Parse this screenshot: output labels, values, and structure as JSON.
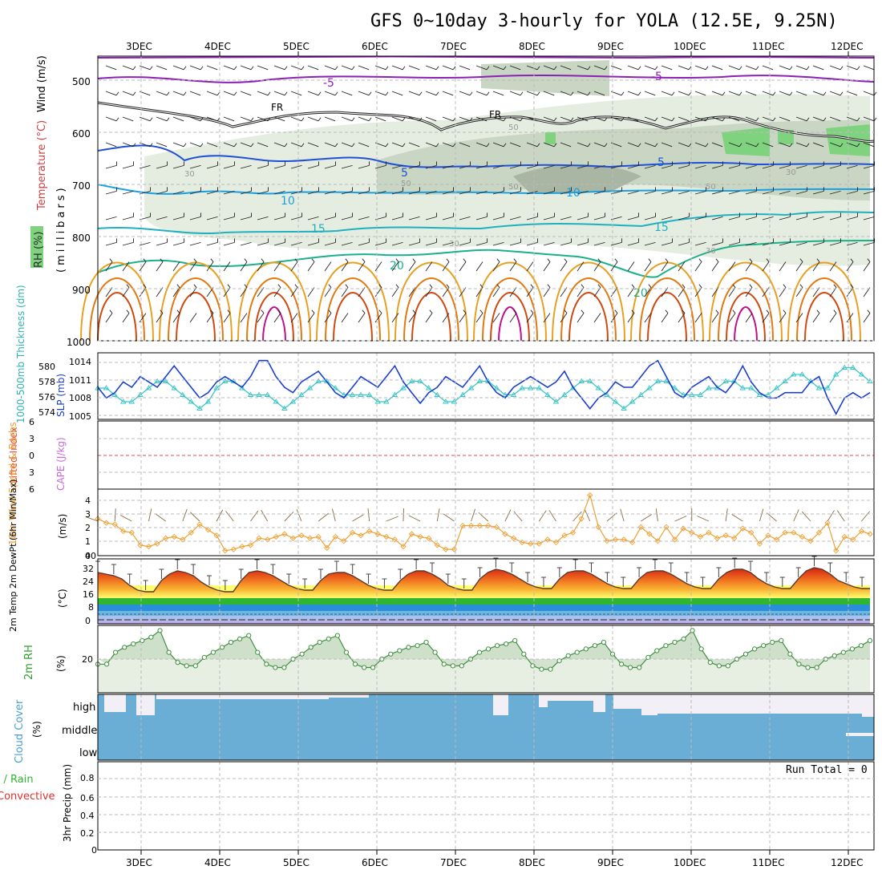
{
  "title": "GFS 0~10day 3-hourly for YOLA (12.5E, 9.25N)",
  "date_labels": [
    "3DEC",
    "4DEC",
    "5DEC",
    "6DEC",
    "7DEC",
    "8DEC",
    "9DEC",
    "10DEC",
    "11DEC",
    "12DEC"
  ],
  "colors": {
    "grid": "#bbbbbb",
    "slp": "#1a3fd0",
    "thickness": "#3bc6c6",
    "lifted": "#e04a4a",
    "cape": "#c86ad8",
    "wind10": "#f0a030",
    "barbs": "#8a6a40",
    "rh2m": "#3f8f3f",
    "rh_fill": "#c8dcc4",
    "cloud": "#6aaed6",
    "cloud_clear": "#f3eff6",
    "precip_total": "#3bbf3b",
    "precip_conv": "#e03030"
  },
  "upper_panel": {
    "ylabel_wind": "Wind (m/s)",
    "ylabel_temp": "Temperature (°C)",
    "ylabel_rh": "RH (%)",
    "ylabel_pressure": "(millibars)",
    "pressure_ticks": [
      "500",
      "600",
      "700",
      "800",
      "900",
      "1000"
    ],
    "isotherm_labels": [
      "-5",
      "-5",
      "FR",
      "FR",
      "5",
      "5",
      "10",
      "10",
      "15",
      "15",
      "20",
      "20"
    ],
    "rh_labels": [
      "30",
      "30",
      "30",
      "30",
      "50",
      "50",
      "50",
      "50"
    ]
  },
  "slp_panel": {
    "ylabel_thickness": "1000-500mb Thickness (dm)",
    "ylabel_slp": "SLP (mb)",
    "thickness_ticks": [
      "580",
      "578",
      "576",
      "574"
    ],
    "slp_ticks": [
      "1014",
      "1011",
      "1008",
      "1005"
    ]
  },
  "stability_panel": {
    "ylabel_li": "Lifted Index",
    "ylabel_cape": "CAPE (J/kg)",
    "ticks": [
      "6",
      "3",
      "0",
      "3",
      "6"
    ]
  },
  "wind_panel": {
    "ylabel": "10m Wind Speed & Barbs",
    "unit": "(m/s)",
    "ticks": [
      "4",
      "3",
      "2",
      "1",
      "0"
    ]
  },
  "temp_panel": {
    "ylabel": "2m Temp 2m DewPt (6hr Min/Max)",
    "unit": "(°C)",
    "ticks": [
      "40",
      "32",
      "24",
      "16",
      "8",
      "0"
    ]
  },
  "rh_panel": {
    "ylabel": "2m RH",
    "unit": "(%)",
    "ticks": [
      "20"
    ]
  },
  "cloud_panel": {
    "ylabel": "Cloud Cover",
    "unit": "(%)",
    "layers": [
      "high",
      "middle",
      "low"
    ]
  },
  "precip_panel": {
    "ylabel_total": "Total / Rain",
    "ylabel_conv": "Convective",
    "ylabel": "3hr Precip (mm)",
    "ticks": [
      "0.8",
      "0.6",
      "0.4",
      "0.2",
      "0"
    ],
    "run_total": "Run Total = 0"
  },
  "chart_data": [
    {
      "type": "line",
      "title": "SLP (mb)",
      "x_unit": "3-hourly steps from 2DEC 12Z",
      "ylim": [
        1004,
        1016
      ],
      "values": [
        1010,
        1008,
        1009,
        1011,
        1010,
        1012,
        1011,
        1010,
        1012,
        1014,
        1012,
        1010,
        1008,
        1009,
        1011,
        1012,
        1011,
        1010,
        1012,
        1015,
        1015,
        1012,
        1010,
        1009,
        1011,
        1012,
        1013,
        1011,
        1009,
        1008,
        1010,
        1012,
        1011,
        1010,
        1012,
        1014,
        1011,
        1009,
        1007,
        1009,
        1010,
        1012,
        1011,
        1010,
        1012,
        1014,
        1011,
        1009,
        1008,
        1010,
        1011,
        1012,
        1011,
        1010,
        1011,
        1013,
        1010,
        1008,
        1006,
        1008,
        1009,
        1011,
        1010,
        1010,
        1012,
        1014,
        1015,
        1012,
        1009,
        1008,
        1010,
        1011,
        1012,
        1010,
        1009,
        1011,
        1014,
        1011,
        1009,
        1008,
        1008,
        1009,
        1009,
        1009,
        1011,
        1012,
        1008,
        1005,
        1008,
        1009,
        1008,
        1009
      ]
    },
    {
      "type": "line",
      "title": "1000-500mb Thickness (dm)",
      "ylim": [
        573,
        581
      ],
      "values": [
        577,
        577,
        576,
        575,
        575,
        576,
        577,
        578,
        578,
        577,
        576,
        575,
        574,
        575,
        577,
        578,
        578,
        577,
        576,
        576,
        576,
        575,
        574,
        575,
        576,
        577,
        578,
        578,
        577,
        576,
        576,
        576,
        576,
        575,
        575,
        576,
        577,
        578,
        578,
        577,
        576,
        575,
        575,
        576,
        577,
        578,
        578,
        577,
        576,
        576,
        577,
        577,
        577,
        576,
        575,
        576,
        577,
        578,
        578,
        577,
        576,
        575,
        574,
        575,
        576,
        577,
        578,
        578,
        577,
        576,
        576,
        576,
        577,
        577,
        578,
        578,
        577,
        577,
        576,
        576,
        577,
        578,
        579,
        579,
        578,
        577,
        577,
        579,
        580,
        580,
        579,
        578
      ]
    },
    {
      "type": "line",
      "title": "10m Wind Speed (m/s)",
      "ylim": [
        0,
        4.5
      ],
      "values": [
        2.6,
        2.3,
        2.2,
        1.7,
        1.6,
        0.7,
        0.6,
        0.8,
        1.2,
        1.3,
        1.1,
        1.6,
        2.2,
        1.8,
        1.4,
        0.3,
        0.4,
        0.6,
        0.7,
        1.2,
        1.1,
        1.3,
        1.5,
        1.2,
        1.4,
        1.2,
        1.3,
        0.5,
        1.3,
        1.0,
        1.6,
        1.4,
        1.7,
        1.5,
        1.3,
        1.1,
        0.6,
        1.5,
        1.3,
        1.2,
        0.7,
        0.4,
        0.4,
        2.1,
        2.1,
        2.1,
        2.1,
        2.0,
        1.5,
        1.2,
        0.9,
        0.8,
        0.8,
        1.1,
        0.9,
        1.4,
        1.6,
        2.6,
        4.3,
        2.0,
        1.0,
        1.1,
        1.1,
        0.9,
        2.0,
        1.5,
        1.0,
        2.0,
        1.1,
        1.9,
        1.6,
        1.3,
        1.6,
        1.2,
        1.4,
        1.2,
        1.9,
        1.6,
        0.8,
        1.4,
        1.1,
        1.6,
        1.6,
        1.3,
        1.0,
        1.6,
        2.3,
        0.3,
        1.3,
        1.1,
        1.7,
        1.5
      ]
    },
    {
      "type": "area",
      "title": "2m Temp (°C)",
      "ylim": [
        0,
        40
      ],
      "values": [
        32,
        31,
        30,
        28,
        24,
        21,
        20,
        20,
        27,
        31,
        33,
        32,
        30,
        26,
        23,
        21,
        20,
        20,
        27,
        32,
        33,
        32,
        30,
        27,
        24,
        22,
        21,
        21,
        27,
        31,
        32,
        32,
        30,
        27,
        24,
        22,
        21,
        21,
        27,
        31,
        33,
        33,
        31,
        28,
        24,
        22,
        21,
        21,
        28,
        32,
        34,
        33,
        31,
        28,
        25,
        23,
        22,
        22,
        28,
        32,
        33,
        33,
        31,
        28,
        25,
        23,
        22,
        22,
        28,
        32,
        33,
        33,
        31,
        28,
        25,
        23,
        22,
        22,
        28,
        32,
        34,
        34,
        32,
        28,
        25,
        23,
        22,
        22,
        28,
        33,
        35,
        34,
        31,
        27,
        25,
        23,
        22,
        22
      ]
    },
    {
      "type": "area",
      "title": "2m RH (%)",
      "ylim": [
        0,
        40
      ],
      "values": [
        17,
        17,
        24,
        27,
        29,
        31,
        33,
        37,
        24,
        18,
        16,
        16,
        21,
        24,
        27,
        30,
        32,
        34,
        24,
        17,
        15,
        15,
        20,
        23,
        27,
        30,
        32,
        34,
        24,
        17,
        15,
        15,
        20,
        23,
        25,
        27,
        28,
        30,
        24,
        17,
        16,
        16,
        20,
        24,
        26,
        28,
        29,
        31,
        23,
        16,
        14,
        14,
        19,
        22,
        24,
        26,
        28,
        30,
        23,
        17,
        15,
        15,
        21,
        25,
        28,
        30,
        32,
        37,
        26,
        18,
        16,
        16,
        20,
        23,
        26,
        28,
        30,
        31,
        23,
        17,
        15,
        15,
        20,
        22,
        24,
        26,
        28,
        31
      ]
    },
    {
      "type": "table",
      "title": "Cloud Cover (%)",
      "rows": [
        "high",
        "middle",
        "low"
      ],
      "note": "high cloud near 100% most of the period with gaps; middle and low cloud 100% (blue)"
    },
    {
      "type": "bar",
      "title": "3hr Precip (mm)",
      "ylim": [
        0,
        0.9
      ],
      "values": [],
      "note": "Run Total = 0"
    }
  ]
}
